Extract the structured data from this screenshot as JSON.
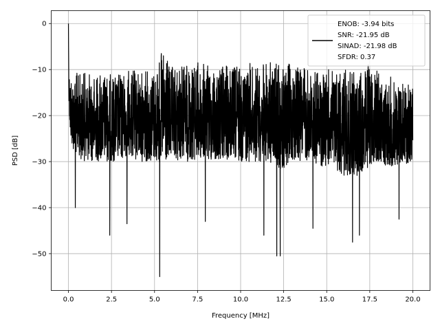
{
  "chart_data": {
    "type": "line",
    "title": "",
    "xlabel": "Frequency [MHz]",
    "ylabel": "PSD [dB]",
    "xlim": [
      -1.0,
      21.0
    ],
    "ylim": [
      -58.0,
      2.8
    ],
    "grid": true,
    "legend_position": "top-right",
    "x_ticks": [
      0.0,
      2.5,
      5.0,
      7.5,
      10.0,
      12.5,
      15.0,
      17.5,
      20.0
    ],
    "x_tick_labels": [
      "0.0",
      "2.5",
      "5.0",
      "7.5",
      "10.0",
      "12.5",
      "15.0",
      "17.5",
      "20.0"
    ],
    "y_ticks": [
      0,
      -10,
      -20,
      -30,
      -40,
      -50
    ],
    "y_tick_labels": [
      "0",
      "−10",
      "−20",
      "−30",
      "−40",
      "−50"
    ],
    "legend": {
      "lines": [
        "ENOB: -3.94 bits",
        "SNR: -21.95 dB",
        "SINAD: -21.98 dB",
        "SFDR: 0.37"
      ]
    },
    "series": [
      {
        "color": "#000000",
        "envelope": {
          "x": [
            0.0,
            0.02,
            0.05,
            0.1,
            0.2,
            0.5,
            1.0,
            1.5,
            2.0,
            2.5,
            3.0,
            3.5,
            4.0,
            4.5,
            5.0,
            5.5,
            6.0,
            6.5,
            7.0,
            7.5,
            8.0,
            8.5,
            9.0,
            9.5,
            10.0,
            10.5,
            11.0,
            11.5,
            12.0,
            12.5,
            13.0,
            13.5,
            14.0,
            14.5,
            15.0,
            15.5,
            16.0,
            16.5,
            17.0,
            17.5,
            18.0,
            18.5,
            19.0,
            19.5,
            20.0
          ],
          "upper": [
            0.0,
            -9.0,
            -9.5,
            -10.0,
            -10.5,
            -10.5,
            -10.5,
            -11.0,
            -10.0,
            -11.0,
            -10.5,
            -10.0,
            -10.0,
            -10.0,
            -9.5,
            -5.5,
            -9.5,
            -8.5,
            -8.5,
            -8.0,
            -9.0,
            -9.0,
            -9.0,
            -9.0,
            -8.5,
            -8.5,
            -9.0,
            -8.5,
            -8.0,
            -9.0,
            -8.5,
            -9.0,
            -9.5,
            -10.0,
            -10.0,
            -9.5,
            -10.0,
            -10.5,
            -10.0,
            -8.0,
            -10.5,
            -11.0,
            -12.0,
            -12.0,
            -12.0
          ],
          "lower": [
            0.0,
            -15.0,
            -20.0,
            -25.0,
            -27.0,
            -29.0,
            -30.0,
            -30.0,
            -30.0,
            -30.0,
            -30.0,
            -29.0,
            -30.0,
            -30.0,
            -30.0,
            -31.0,
            -30.0,
            -30.0,
            -30.0,
            -30.0,
            -30.0,
            -30.0,
            -30.0,
            -30.0,
            -30.0,
            -30.0,
            -30.0,
            -30.0,
            -31.0,
            -32.0,
            -30.0,
            -30.0,
            -30.0,
            -31.0,
            -31.0,
            -32.0,
            -33.0,
            -33.0,
            -33.0,
            -31.0,
            -30.0,
            -31.0,
            -31.0,
            -31.0,
            -30.0
          ]
        },
        "dips": [
          {
            "x": 0.4,
            "y": -40.0
          },
          {
            "x": 2.4,
            "y": -46.0
          },
          {
            "x": 3.4,
            "y": -43.5
          },
          {
            "x": 5.3,
            "y": -55.0
          },
          {
            "x": 7.95,
            "y": -43.0
          },
          {
            "x": 11.35,
            "y": -46.0
          },
          {
            "x": 12.1,
            "y": -50.5
          },
          {
            "x": 12.3,
            "y": -50.5
          },
          {
            "x": 14.2,
            "y": -44.5
          },
          {
            "x": 16.5,
            "y": -47.5
          },
          {
            "x": 16.9,
            "y": -46.0
          },
          {
            "x": 19.2,
            "y": -42.5
          }
        ]
      }
    ]
  }
}
